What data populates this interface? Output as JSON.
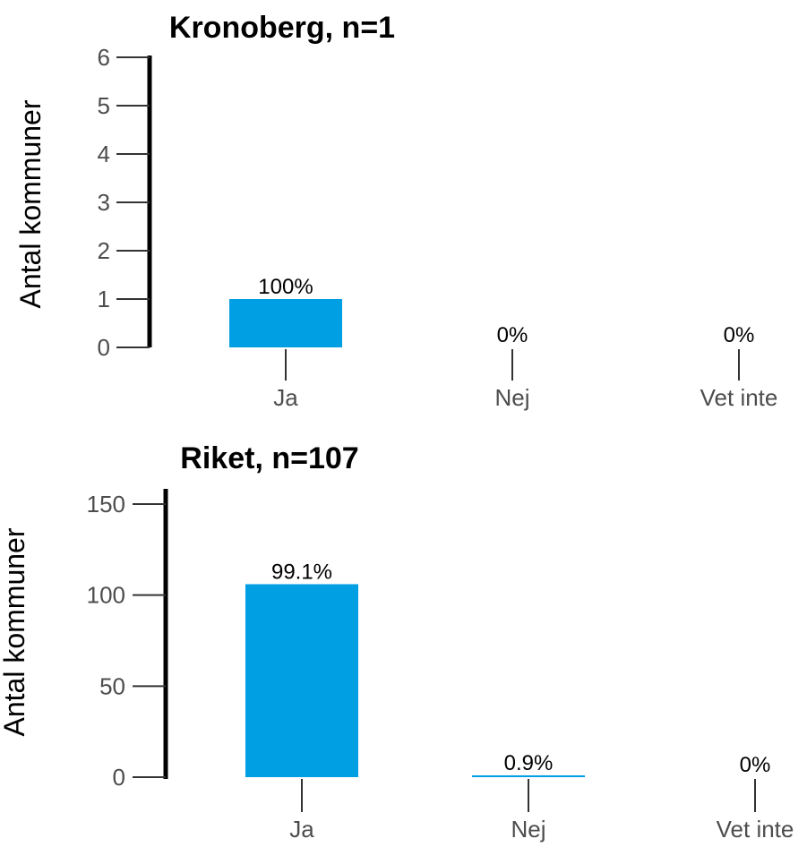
{
  "colors": {
    "bar": "#009FE3",
    "axis": "#000000",
    "tick": "#333333",
    "tick_label": "#4d4d4d"
  },
  "chart_data": [
    {
      "type": "bar",
      "title": "Kronoberg, n=1",
      "ylabel": "Antal kommuner",
      "ylim": [
        0,
        6
      ],
      "yticks": [
        0,
        1,
        2,
        3,
        4,
        5,
        6
      ],
      "categories": [
        "Ja",
        "Nej",
        "Vet inte"
      ],
      "values": [
        1,
        0,
        0
      ],
      "data_labels": [
        "100%",
        "0%",
        "0%"
      ]
    },
    {
      "type": "bar",
      "title": "Riket, n=107",
      "ylabel": "Antal kommuner",
      "ylim": [
        0,
        150
      ],
      "yticks": [
        0,
        50,
        100,
        150
      ],
      "categories": [
        "Ja",
        "Nej",
        "Vet inte"
      ],
      "values": [
        106,
        1,
        0
      ],
      "data_labels": [
        "99.1%",
        "0.9%",
        "0%"
      ]
    }
  ]
}
